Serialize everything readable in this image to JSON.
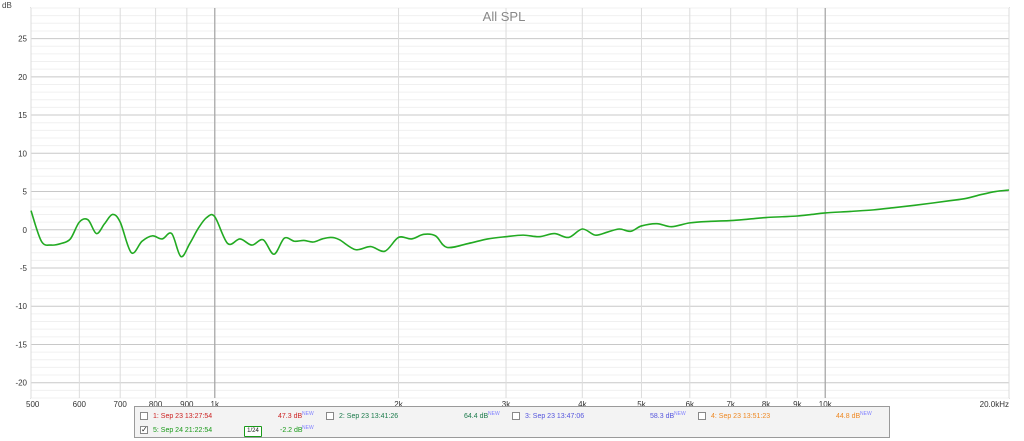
{
  "chart_data": {
    "type": "line",
    "title": "All SPL",
    "ylabel": "dB",
    "x_scale": "log",
    "xlim": [
      500,
      20000
    ],
    "ylim": [
      -22,
      29
    ],
    "grid": true,
    "x_tick_labels": [
      {
        "value": 500,
        "label": "500"
      },
      {
        "value": 600,
        "label": "600"
      },
      {
        "value": 700,
        "label": "700"
      },
      {
        "value": 800,
        "label": "800"
      },
      {
        "value": 900,
        "label": "900"
      },
      {
        "value": 1000,
        "label": "1k"
      },
      {
        "value": 2000,
        "label": "2k"
      },
      {
        "value": 3000,
        "label": "3k"
      },
      {
        "value": 4000,
        "label": "4k"
      },
      {
        "value": 5000,
        "label": "5k"
      },
      {
        "value": 6000,
        "label": "6k"
      },
      {
        "value": 7000,
        "label": "7k"
      },
      {
        "value": 8000,
        "label": "8k"
      },
      {
        "value": 9000,
        "label": "9k"
      },
      {
        "value": 10000,
        "label": "10k"
      },
      {
        "value": 20000,
        "label": "20.0kHz"
      }
    ],
    "y_ticks": [
      25,
      20,
      15,
      10,
      5,
      0,
      -5,
      -10,
      -15,
      -20
    ],
    "series": [
      {
        "name": "5: Sep 24 21:22:54",
        "color": "#22aa22",
        "x": [
          500,
          520,
          540,
          560,
          580,
          600,
          620,
          640,
          660,
          680,
          700,
          730,
          760,
          790,
          820,
          850,
          880,
          910,
          940,
          970,
          1000,
          1050,
          1100,
          1150,
          1200,
          1250,
          1300,
          1350,
          1400,
          1450,
          1500,
          1550,
          1600,
          1700,
          1800,
          1900,
          2000,
          2100,
          2200,
          2300,
          2400,
          2600,
          2800,
          3000,
          3200,
          3400,
          3600,
          3800,
          4000,
          4200,
          4400,
          4600,
          4800,
          5000,
          5300,
          5600,
          6000,
          6500,
          7000,
          7500,
          8000,
          8500,
          9000,
          9500,
          10000,
          11000,
          12000,
          13000,
          14000,
          15000,
          16000,
          17000,
          18000,
          19000,
          20000
        ],
        "y": [
          2.5,
          -1.5,
          -2.0,
          -1.8,
          -1.2,
          1.0,
          1.3,
          -0.5,
          0.8,
          2.0,
          1.0,
          -3.0,
          -1.5,
          -0.8,
          -1.2,
          -0.5,
          -3.5,
          -1.8,
          0.2,
          1.6,
          1.7,
          -1.8,
          -1.2,
          -2.0,
          -1.3,
          -3.2,
          -1.1,
          -1.5,
          -1.4,
          -1.6,
          -1.2,
          -1.0,
          -1.3,
          -2.6,
          -2.2,
          -2.8,
          -1.0,
          -1.2,
          -0.6,
          -0.8,
          -2.3,
          -1.8,
          -1.2,
          -0.9,
          -0.7,
          -0.9,
          -0.5,
          -1.0,
          0.1,
          -0.7,
          -0.3,
          0.1,
          -0.2,
          0.5,
          0.8,
          0.4,
          0.9,
          1.1,
          1.2,
          1.4,
          1.6,
          1.7,
          1.8,
          2.0,
          2.2,
          2.4,
          2.6,
          2.9,
          3.2,
          3.5,
          3.8,
          4.1,
          4.6,
          5.0,
          5.2
        ]
      }
    ]
  },
  "legend": {
    "items": [
      {
        "label": "1: Sep 23 13:27:54",
        "value": "47.3 dB",
        "badge": "NEW",
        "color": "#cc2222",
        "checked": false
      },
      {
        "label": "2: Sep 23 13:41:26",
        "value": "64.4 dB",
        "badge": "NEW",
        "color": "#1a7a4a",
        "checked": false
      },
      {
        "label": "3: Sep 23 13:47:06",
        "value": "58.3 dB",
        "badge": "NEW",
        "color": "#5555dd",
        "checked": false
      },
      {
        "label": "4: Sep 23 13:51:23",
        "value": "44.8 dB",
        "badge": "NEW",
        "color": "#ee8822",
        "checked": false
      },
      {
        "label": "5: Sep 24 21:22:54",
        "value": "-2.2 dB",
        "badge": "NEW",
        "color": "#1a9a1a",
        "checked": true,
        "smoothing": "1/24"
      }
    ]
  }
}
